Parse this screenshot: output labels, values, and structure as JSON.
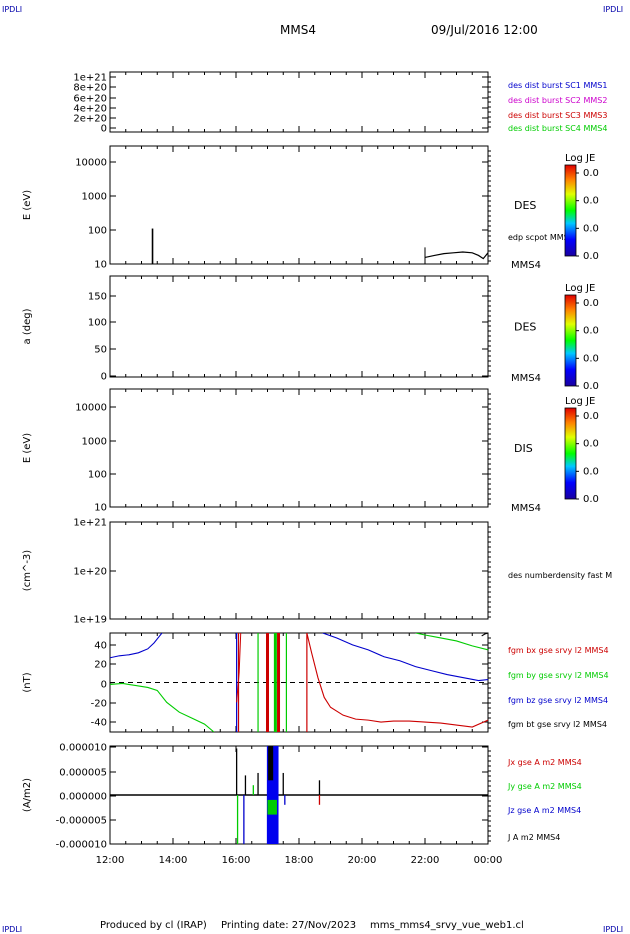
{
  "header": {
    "corner_tl": "IPDLI",
    "corner_tr": "IPDLI",
    "corner_bl": "IPDLI",
    "corner_br": "IPDLI",
    "spacecraft": "MMS4",
    "datetime": "09/Jul/2016 12:00"
  },
  "footer": {
    "produced_by": "Produced by cl (IRAP)",
    "printing_date": "Printing date: 27/Nov/2023",
    "filename": "mms_mms4_srvy_vue_web1.cl"
  },
  "colors": {
    "blue": "#0000cc",
    "magenta": "#cc00cc",
    "red": "#cc0000",
    "green": "#00cc00",
    "black": "#000000"
  },
  "chart_data": [
    {
      "id": "p1",
      "type": "line",
      "ylabel": "",
      "yticks": [
        "1e+21",
        "8e+20",
        "6e+20",
        "4e+20",
        "2e+20",
        "0"
      ],
      "ylim": [
        0,
        1e+21
      ],
      "reference_line": 0,
      "legend": [
        {
          "name": "des dist burst SC1 MMS1",
          "color": "#0000cc"
        },
        {
          "name": "des dist burst SC2 MMS2",
          "color": "#cc00cc"
        },
        {
          "name": "des dist burst SC3 MMS3",
          "color": "#cc0000"
        },
        {
          "name": "des dist burst SC4 MMS4",
          "color": "#00cc00"
        }
      ]
    },
    {
      "id": "p2",
      "type": "line",
      "ylabel": "E (eV)",
      "yscale": "log",
      "yticks": [
        "10000",
        "1000",
        "100",
        "10"
      ],
      "ylim": [
        10,
        15000
      ],
      "species": "DES",
      "spacecraft_tag": "MMS4",
      "series_label": "edp scpot MMS4",
      "colorbar": {
        "title": "Log JE",
        "ticks": [
          "0.0",
          "0.0",
          "0.0",
          "0.0"
        ]
      },
      "spike": {
        "x": 13.35,
        "y": 90
      },
      "scpot": {
        "x": [
          22.0,
          22.3,
          22.6,
          22.9,
          23.2,
          23.5,
          23.7,
          23.85,
          24.0
        ],
        "y": [
          15,
          17,
          19,
          20,
          21,
          20,
          17,
          14,
          20
        ]
      }
    },
    {
      "id": "p3",
      "type": "heatmap",
      "ylabel": "a (deg)",
      "yticks": [
        "150",
        "100",
        "50",
        "0"
      ],
      "ylim": [
        0,
        180
      ],
      "species": "DES",
      "spacecraft_tag": "MMS4",
      "colorbar": {
        "title": "Log JE",
        "ticks": [
          "0.0",
          "0.0",
          "0.0",
          "0.0"
        ]
      }
    },
    {
      "id": "p4",
      "type": "heatmap",
      "ylabel": "E (eV)",
      "yscale": "log",
      "yticks": [
        "10000",
        "1000",
        "100",
        "10"
      ],
      "ylim": [
        10,
        20000
      ],
      "species": "DIS",
      "spacecraft_tag": "MMS4",
      "colorbar": {
        "title": "Log JE",
        "ticks": [
          "0.0",
          "0.0",
          "0.0",
          "0.0"
        ]
      }
    },
    {
      "id": "p5",
      "type": "line",
      "ylabel": "(cm^-3)",
      "yscale": "log",
      "yticks": [
        "1e+21",
        "1e+20",
        "1e+19"
      ],
      "ylim": [
        1e+19,
        1e+21
      ],
      "legend": [
        {
          "name": "des numberdensity fast M",
          "color": "#000000"
        }
      ]
    },
    {
      "id": "p6",
      "type": "line",
      "ylabel": "(nT)",
      "yticks": [
        "40",
        "20",
        "0",
        "-20",
        "-40"
      ],
      "ylim": [
        -50,
        50
      ],
      "reference_line": 0,
      "legend": [
        {
          "name": "fgm bx gse srvy l2 MMS4",
          "color": "#cc0000"
        },
        {
          "name": "fgm by gse srvy l2 MMS4",
          "color": "#00cc00"
        },
        {
          "name": "fgm bz gse srvy l2 MMS4",
          "color": "#0000cc"
        },
        {
          "name": "fgm bt gse srvy l2 MMS4",
          "color": "#000000"
        }
      ],
      "series": [
        {
          "name": "bz",
          "color": "#0000cc",
          "x": [
            12.0,
            12.3,
            12.6,
            12.9,
            13.2,
            13.4,
            13.55,
            13.65
          ],
          "y": [
            25,
            27,
            28,
            30,
            34,
            40,
            46,
            50
          ]
        },
        {
          "name": "by",
          "color": "#00cc00",
          "x": [
            12.0,
            12.4,
            12.8,
            13.2,
            13.5,
            13.8,
            14.2,
            14.6,
            15.0,
            15.3
          ],
          "y": [
            -2,
            -1,
            -3,
            -5,
            -8,
            -20,
            -30,
            -36,
            -42,
            -50
          ]
        },
        {
          "name": "bz",
          "color": "#0000cc",
          "x": [
            18.75,
            19.2,
            19.7,
            20.2,
            20.7,
            21.2,
            21.7,
            22.2,
            22.7,
            23.2,
            23.7,
            24.0
          ],
          "y": [
            50,
            45,
            38,
            33,
            26,
            22,
            16,
            12,
            8,
            5,
            2,
            3
          ]
        },
        {
          "name": "bx",
          "color": "#cc0000",
          "x": [
            18.25,
            18.4,
            18.6,
            18.8,
            19.0,
            19.4,
            19.8,
            20.2,
            20.6,
            21.0,
            21.5,
            22.0,
            22.5,
            23.0,
            23.5,
            24.0
          ],
          "y": [
            50,
            30,
            5,
            -15,
            -25,
            -33,
            -37,
            -38,
            -40,
            -39,
            -39,
            -40,
            -41,
            -43,
            -45,
            -38
          ]
        },
        {
          "name": "by",
          "color": "#00cc00",
          "x": [
            21.7,
            22.0,
            22.5,
            23.0,
            23.5,
            24.0
          ],
          "y": [
            50,
            48,
            45,
            42,
            37,
            33
          ]
        },
        {
          "name": "bt",
          "color": "#000000",
          "x": [
            23.8,
            23.9,
            24.0
          ],
          "y": [
            47,
            49,
            50
          ]
        }
      ]
    },
    {
      "id": "p7",
      "type": "line",
      "ylabel": "(A/m2)",
      "yticks": [
        "0.000010",
        "0.000005",
        "0.000000",
        "-0.000005",
        "-0.000010"
      ],
      "ylim": [
        -1e-05,
        1e-05
      ],
      "legend": [
        {
          "name": "Jx gse A m2 MMS4",
          "color": "#cc0000"
        },
        {
          "name": "Jy gse A m2 MMS4",
          "color": "#00cc00"
        },
        {
          "name": "Jz gse A m2 MMS4",
          "color": "#0000cc"
        },
        {
          "name": "J A m2 MMS4",
          "color": "#000000"
        }
      ]
    }
  ],
  "x_axis": {
    "range": [
      12,
      24
    ],
    "ticks": [
      12,
      14,
      16,
      18,
      20,
      22,
      24
    ],
    "tick_labels": [
      "12:00",
      "14:00",
      "16:00",
      "18:00",
      "20:00",
      "22:00",
      "00:00"
    ]
  }
}
